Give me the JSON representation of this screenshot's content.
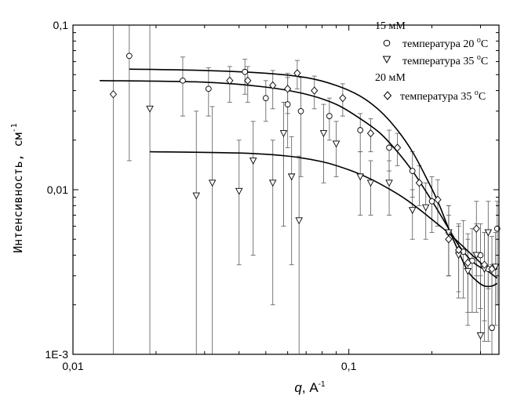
{
  "chart_data": {
    "type": "scatter",
    "x_scale": "log",
    "y_scale": "log",
    "xlim": [
      0.01,
      0.35
    ],
    "ylim": [
      0.001,
      0.1
    ],
    "xlabel_var": "q",
    "xlabel_unit": ", А",
    "xlabel_exp": "-1",
    "ylabel_main": "Интенсивность, см",
    "ylabel_exp": "-1",
    "x_ticks": [
      {
        "value": 0.01,
        "label": "0,01"
      },
      {
        "value": 0.1,
        "label": "0,1"
      }
    ],
    "y_ticks": [
      {
        "value": 0.001,
        "label": "1E-3"
      },
      {
        "value": 0.01,
        "label": "0,01"
      },
      {
        "value": 0.1,
        "label": "0,1"
      }
    ],
    "legend": {
      "position": "top-right",
      "group1": "15 мМ",
      "group2": "20 мМ",
      "entry_text": "температура",
      "deg": "o",
      "unit": "C"
    },
    "series": [
      {
        "name": "температура 20 °C",
        "group": "15 мМ",
        "temp": "20 ",
        "marker": "circle",
        "points": [
          {
            "x": 0.016,
            "y": 0.065,
            "lo": 0.015,
            "hi": 0.1
          },
          {
            "x": 0.025,
            "y": 0.046,
            "lo": 0.028,
            "hi": 0.064
          },
          {
            "x": 0.031,
            "y": 0.041,
            "lo": 0.028,
            "hi": 0.055
          },
          {
            "x": 0.042,
            "y": 0.052,
            "lo": 0.038,
            "hi": 0.062
          },
          {
            "x": 0.05,
            "y": 0.036,
            "lo": 0.026,
            "hi": 0.046
          },
          {
            "x": 0.06,
            "y": 0.033,
            "lo": 0.018,
            "hi": 0.048
          },
          {
            "x": 0.067,
            "y": 0.03,
            "lo": 0.012,
            "hi": 0.048
          },
          {
            "x": 0.085,
            "y": 0.028,
            "lo": 0.02,
            "hi": 0.036
          },
          {
            "x": 0.11,
            "y": 0.023,
            "lo": 0.017,
            "hi": 0.029
          },
          {
            "x": 0.14,
            "y": 0.018,
            "lo": 0.013,
            "hi": 0.023
          },
          {
            "x": 0.17,
            "y": 0.013,
            "lo": 0.009,
            "hi": 0.017
          },
          {
            "x": 0.2,
            "y": 0.0085,
            "lo": 0.0055,
            "hi": 0.012
          },
          {
            "x": 0.23,
            "y": 0.0055,
            "lo": 0.003,
            "hi": 0.008
          },
          {
            "x": 0.26,
            "y": 0.0042,
            "lo": 0.0022,
            "hi": 0.0065
          },
          {
            "x": 0.28,
            "y": 0.0037,
            "lo": 0.0018,
            "hi": 0.0058
          },
          {
            "x": 0.3,
            "y": 0.004,
            "lo": 0.0019,
            "hi": 0.0062
          },
          {
            "x": 0.32,
            "y": 0.0033,
            "lo": 0.0012,
            "hi": 0.0055
          },
          {
            "x": 0.33,
            "y": 0.00145,
            "lo": 0.001,
            "hi": 0.0035
          },
          {
            "x": 0.345,
            "y": 0.0058,
            "lo": 0.002,
            "hi": 0.0085
          }
        ]
      },
      {
        "name": "температура 35 °C",
        "group": "15 мМ",
        "temp": "35 ",
        "marker": "triangle-down",
        "points": [
          {
            "x": 0.019,
            "y": 0.031,
            "lo": 0.001,
            "hi": 0.1
          },
          {
            "x": 0.028,
            "y": 0.0092,
            "lo": 0.001,
            "hi": 0.03
          },
          {
            "x": 0.032,
            "y": 0.011,
            "lo": 0.001,
            "hi": 0.032
          },
          {
            "x": 0.04,
            "y": 0.0098,
            "lo": 0.0035,
            "hi": 0.02
          },
          {
            "x": 0.045,
            "y": 0.015,
            "lo": 0.004,
            "hi": 0.026
          },
          {
            "x": 0.053,
            "y": 0.011,
            "lo": 0.002,
            "hi": 0.02
          },
          {
            "x": 0.058,
            "y": 0.022,
            "lo": 0.006,
            "hi": 0.034
          },
          {
            "x": 0.062,
            "y": 0.012,
            "lo": 0.0035,
            "hi": 0.021
          },
          {
            "x": 0.066,
            "y": 0.0065,
            "lo": 0.001,
            "hi": 0.016
          },
          {
            "x": 0.081,
            "y": 0.022,
            "lo": 0.011,
            "hi": 0.033
          },
          {
            "x": 0.09,
            "y": 0.019,
            "lo": 0.012,
            "hi": 0.026
          },
          {
            "x": 0.11,
            "y": 0.012,
            "lo": 0.007,
            "hi": 0.017
          },
          {
            "x": 0.12,
            "y": 0.011,
            "lo": 0.007,
            "hi": 0.015
          },
          {
            "x": 0.14,
            "y": 0.011,
            "lo": 0.007,
            "hi": 0.015
          },
          {
            "x": 0.17,
            "y": 0.0075,
            "lo": 0.005,
            "hi": 0.01
          },
          {
            "x": 0.19,
            "y": 0.0078,
            "lo": 0.005,
            "hi": 0.011
          },
          {
            "x": 0.23,
            "y": 0.0055,
            "lo": 0.003,
            "hi": 0.008
          },
          {
            "x": 0.25,
            "y": 0.004,
            "lo": 0.0022,
            "hi": 0.006
          },
          {
            "x": 0.27,
            "y": 0.0032,
            "lo": 0.0015,
            "hi": 0.005
          },
          {
            "x": 0.29,
            "y": 0.004,
            "lo": 0.0018,
            "hi": 0.0062
          },
          {
            "x": 0.3,
            "y": 0.0013,
            "lo": 0.001,
            "hi": 0.003
          },
          {
            "x": 0.31,
            "y": 0.0033,
            "lo": 0.0012,
            "hi": 0.0055
          },
          {
            "x": 0.32,
            "y": 0.0055,
            "lo": 0.0025,
            "hi": 0.0085
          },
          {
            "x": 0.34,
            "y": 0.0034,
            "lo": 0.0015,
            "hi": 0.0055
          }
        ]
      },
      {
        "name": "температура 35 °C",
        "group": "20 мМ",
        "temp": "35 ",
        "marker": "diamond",
        "points": [
          {
            "x": 0.014,
            "y": 0.038,
            "lo": 0.001,
            "hi": 0.1
          },
          {
            "x": 0.037,
            "y": 0.046,
            "lo": 0.034,
            "hi": 0.056
          },
          {
            "x": 0.043,
            "y": 0.046,
            "lo": 0.034,
            "hi": 0.056
          },
          {
            "x": 0.053,
            "y": 0.043,
            "lo": 0.031,
            "hi": 0.053
          },
          {
            "x": 0.06,
            "y": 0.041,
            "lo": 0.029,
            "hi": 0.051
          },
          {
            "x": 0.065,
            "y": 0.051,
            "lo": 0.041,
            "hi": 0.061
          },
          {
            "x": 0.075,
            "y": 0.04,
            "lo": 0.031,
            "hi": 0.049
          },
          {
            "x": 0.095,
            "y": 0.036,
            "lo": 0.028,
            "hi": 0.044
          },
          {
            "x": 0.12,
            "y": 0.022,
            "lo": 0.017,
            "hi": 0.027
          },
          {
            "x": 0.15,
            "y": 0.018,
            "lo": 0.014,
            "hi": 0.022
          },
          {
            "x": 0.18,
            "y": 0.011,
            "lo": 0.008,
            "hi": 0.014
          },
          {
            "x": 0.21,
            "y": 0.0087,
            "lo": 0.006,
            "hi": 0.0115
          },
          {
            "x": 0.23,
            "y": 0.005,
            "lo": 0.003,
            "hi": 0.007
          },
          {
            "x": 0.25,
            "y": 0.0043,
            "lo": 0.0024,
            "hi": 0.0062
          },
          {
            "x": 0.27,
            "y": 0.0036,
            "lo": 0.0018,
            "hi": 0.0054
          },
          {
            "x": 0.29,
            "y": 0.0058,
            "lo": 0.003,
            "hi": 0.0085
          },
          {
            "x": 0.31,
            "y": 0.0035,
            "lo": 0.0016,
            "hi": 0.0055
          },
          {
            "x": 0.33,
            "y": 0.0033,
            "lo": 0.0014,
            "hi": 0.0052
          }
        ]
      }
    ],
    "fits": [
      {
        "points": [
          [
            0.016,
            0.054
          ],
          [
            0.03,
            0.053
          ],
          [
            0.05,
            0.051
          ],
          [
            0.07,
            0.048
          ],
          [
            0.09,
            0.043
          ],
          [
            0.11,
            0.037
          ],
          [
            0.13,
            0.03
          ],
          [
            0.15,
            0.023
          ],
          [
            0.17,
            0.017
          ],
          [
            0.19,
            0.012
          ],
          [
            0.21,
            0.0085
          ],
          [
            0.23,
            0.0058
          ],
          [
            0.25,
            0.0042
          ],
          [
            0.27,
            0.0032
          ],
          [
            0.29,
            0.0028
          ],
          [
            0.31,
            0.0026
          ],
          [
            0.33,
            0.0026
          ],
          [
            0.345,
            0.0027
          ]
        ]
      },
      {
        "points": [
          [
            0.0125,
            0.046
          ],
          [
            0.03,
            0.045
          ],
          [
            0.05,
            0.042
          ],
          [
            0.07,
            0.038
          ],
          [
            0.09,
            0.033
          ],
          [
            0.11,
            0.027
          ],
          [
            0.13,
            0.022
          ],
          [
            0.15,
            0.017
          ],
          [
            0.17,
            0.013
          ],
          [
            0.19,
            0.0098
          ],
          [
            0.21,
            0.0075
          ],
          [
            0.23,
            0.0058
          ],
          [
            0.25,
            0.0046
          ],
          [
            0.27,
            0.0039
          ],
          [
            0.29,
            0.0035
          ],
          [
            0.31,
            0.0033
          ],
          [
            0.33,
            0.0033
          ],
          [
            0.345,
            0.0033
          ]
        ]
      },
      {
        "points": [
          [
            0.019,
            0.017
          ],
          [
            0.04,
            0.0167
          ],
          [
            0.06,
            0.016
          ],
          [
            0.08,
            0.0148
          ],
          [
            0.1,
            0.0132
          ],
          [
            0.12,
            0.0116
          ],
          [
            0.14,
            0.0101
          ],
          [
            0.16,
            0.0088
          ],
          [
            0.18,
            0.0076
          ],
          [
            0.2,
            0.0066
          ],
          [
            0.22,
            0.0058
          ],
          [
            0.24,
            0.0051
          ],
          [
            0.26,
            0.0045
          ],
          [
            0.28,
            0.004
          ],
          [
            0.3,
            0.0036
          ],
          [
            0.32,
            0.0032
          ],
          [
            0.345,
            0.0029
          ]
        ]
      }
    ]
  }
}
